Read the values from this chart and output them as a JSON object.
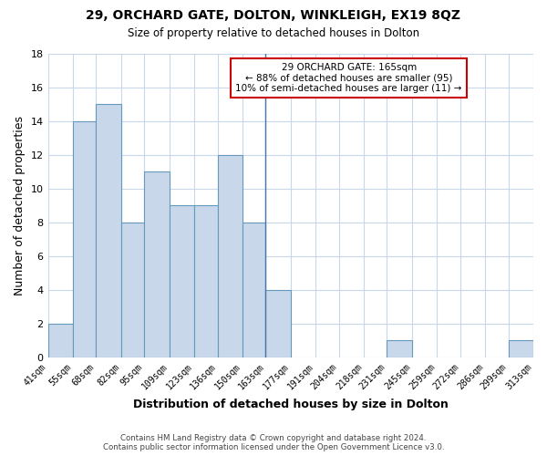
{
  "title": "29, ORCHARD GATE, DOLTON, WINKLEIGH, EX19 8QZ",
  "subtitle": "Size of property relative to detached houses in Dolton",
  "xlabel": "Distribution of detached houses by size in Dolton",
  "ylabel": "Number of detached properties",
  "bin_edges": [
    41,
    55,
    68,
    82,
    95,
    109,
    123,
    136,
    150,
    163,
    177,
    191,
    204,
    218,
    231,
    245,
    259,
    272,
    286,
    299,
    313
  ],
  "bin_counts": [
    2,
    14,
    15,
    8,
    11,
    9,
    9,
    12,
    8,
    4,
    0,
    0,
    0,
    0,
    1,
    0,
    0,
    0,
    0,
    1
  ],
  "bar_color": "#c8d8ea",
  "bar_edgecolor": "#6699bb",
  "vline_x": 163,
  "vline_color": "#4477aa",
  "annotation_title": "29 ORCHARD GATE: 165sqm",
  "annotation_line1": "← 88% of detached houses are smaller (95)",
  "annotation_line2": "10% of semi-detached houses are larger (11) →",
  "annotation_box_edgecolor": "#cc0000",
  "footer_line1": "Contains HM Land Registry data © Crown copyright and database right 2024.",
  "footer_line2": "Contains public sector information licensed under the Open Government Licence v3.0.",
  "tick_labels": [
    "41sqm",
    "55sqm",
    "68sqm",
    "82sqm",
    "95sqm",
    "109sqm",
    "123sqm",
    "136sqm",
    "150sqm",
    "163sqm",
    "177sqm",
    "191sqm",
    "204sqm",
    "218sqm",
    "231sqm",
    "245sqm",
    "259sqm",
    "272sqm",
    "286sqm",
    "299sqm",
    "313sqm"
  ],
  "ylim": [
    0,
    18
  ],
  "yticks": [
    0,
    2,
    4,
    6,
    8,
    10,
    12,
    14,
    16,
    18
  ],
  "background_color": "#ffffff",
  "grid_color": "#c8d8ea"
}
